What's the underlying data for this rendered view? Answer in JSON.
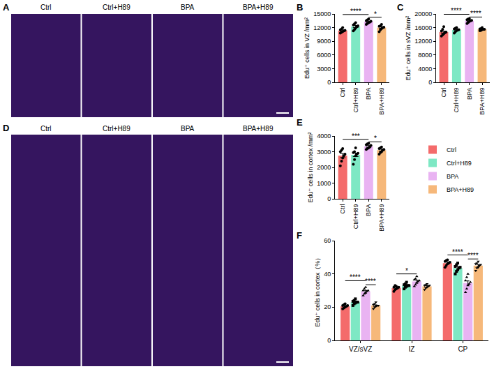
{
  "image_panels": [
    {
      "letter": "A",
      "columns": [
        "Ctrl",
        "Ctrl+H89",
        "BPA",
        "BPA+H89"
      ]
    },
    {
      "letter": "D",
      "columns": [
        "Ctrl",
        "Ctrl+H89",
        "BPA",
        "BPA+H89"
      ]
    }
  ],
  "chart_data": [
    {
      "letter": "B",
      "type": "bar",
      "y_label": "Edu⁺ cells in VZ /mm²",
      "categories": [
        "Ctrl",
        "Ctrl+H89",
        "BPA",
        "BPA+H89"
      ],
      "values": [
        11350,
        12250,
        13300,
        12000
      ],
      "errors": [
        150,
        220,
        140,
        180
      ],
      "points": [
        [
          10800,
          11000,
          11150,
          11300,
          11400,
          11500,
          11700,
          12000
        ],
        [
          11300,
          11600,
          11900,
          12200,
          12400,
          12600,
          12800,
          13100
        ],
        [
          12700,
          12900,
          13100,
          13200,
          13400,
          13500,
          13700,
          13900
        ],
        [
          11100,
          11500,
          11800,
          12000,
          12100,
          12300,
          12400,
          12700
        ]
      ],
      "colors": [
        "#f46b6b",
        "#7ee8c4",
        "#e9b3f2",
        "#f6b87a"
      ],
      "ylim": [
        0,
        15000
      ],
      "yticks": [
        0,
        3000,
        6000,
        9000,
        12000,
        15000
      ],
      "grid": false,
      "comparisons": [
        {
          "from": "Ctrl",
          "to": "BPA",
          "label": "****"
        },
        {
          "from": "BPA",
          "to": "BPA+H89",
          "label": "*"
        }
      ]
    },
    {
      "letter": "C",
      "type": "bar",
      "y_label": "Edu⁺ cells in sVZ /mm²",
      "categories": [
        "Ctrl",
        "Ctrl+H89",
        "BPA",
        "BPA+H89"
      ],
      "values": [
        14700,
        15300,
        18000,
        15500
      ],
      "errors": [
        300,
        200,
        180,
        110
      ],
      "points": [
        [
          13500,
          13900,
          14200,
          14500,
          14700,
          15000,
          15500,
          16300
        ],
        [
          14400,
          14800,
          15100,
          15300,
          15400,
          15600,
          15800,
          16000
        ],
        [
          17200,
          17500,
          17800,
          18000,
          18100,
          18300,
          18500,
          18600
        ],
        [
          15100,
          15200,
          15400,
          15500,
          15500,
          15600,
          15700,
          16000
        ]
      ],
      "colors": [
        "#f46b6b",
        "#7ee8c4",
        "#e9b3f2",
        "#f6b87a"
      ],
      "ylim": [
        0,
        20000
      ],
      "yticks": [
        0,
        4000,
        8000,
        12000,
        16000,
        20000
      ],
      "grid": false,
      "comparisons": [
        {
          "from": "Ctrl",
          "to": "BPA",
          "label": "****"
        },
        {
          "from": "BPA",
          "to": "BPA+H89",
          "label": "****"
        }
      ]
    },
    {
      "letter": "E",
      "type": "bar",
      "y_label": "Edu⁺ cells in cortex /mm²",
      "categories": [
        "Ctrl",
        "Ctrl+H89",
        "BPA",
        "BPA+H89"
      ],
      "values": [
        2750,
        2800,
        3350,
        3100
      ],
      "errors": [
        130,
        110,
        60,
        55
      ],
      "points": [
        [
          2100,
          2400,
          2600,
          2750,
          2850,
          3000,
          3100,
          3200
        ],
        [
          2200,
          2500,
          2750,
          2850,
          2900,
          2950,
          3000,
          3250
        ],
        [
          3150,
          3200,
          3250,
          3300,
          3400,
          3450,
          3500,
          3530
        ],
        [
          2850,
          2950,
          3000,
          3100,
          3150,
          3200,
          3250,
          3300
        ]
      ],
      "colors": [
        "#f46b6b",
        "#7ee8c4",
        "#e9b3f2",
        "#f6b87a"
      ],
      "ylim": [
        0,
        4000
      ],
      "yticks": [
        0,
        1000,
        2000,
        3000,
        4000
      ],
      "grid": false,
      "comparisons": [
        {
          "from": "Ctrl",
          "to": "BPA",
          "label": "***"
        },
        {
          "from": "BPA",
          "to": "BPA+H89",
          "label": "*"
        }
      ]
    },
    {
      "letter": "F",
      "type": "bar",
      "y_label": "Edu⁺ cells in cortex（%）",
      "categories": [
        "VZ/sVZ",
        "IZ",
        "CP"
      ],
      "series": [
        {
          "name": "Ctrl",
          "color": "#f46b6b",
          "marker": "circle",
          "values": [
            20.5,
            31.5,
            46.5
          ],
          "errors": [
            0.4,
            0.5,
            0.6
          ],
          "points": [
            [
              19,
              19.5,
              20,
              20.5,
              21,
              21,
              21.5,
              22
            ],
            [
              29.5,
              30.5,
              31,
              31.5,
              32,
              32,
              33,
              32.5
            ],
            [
              44,
              45,
              46,
              46.5,
              47,
              47.5,
              48,
              48.5
            ]
          ]
        },
        {
          "name": "Ctrl+H89",
          "color": "#7ee8c4",
          "marker": "square",
          "values": [
            23,
            33,
            43.5
          ],
          "errors": [
            0.5,
            0.5,
            0.8
          ],
          "points": [
            [
              21,
              22,
              22.5,
              23,
              23,
              23.5,
              24,
              25
            ],
            [
              31,
              32,
              32.5,
              33,
              33,
              33.5,
              34,
              35
            ],
            [
              40,
              41.5,
              42.5,
              43.5,
              44,
              44.5,
              45.5,
              46.5
            ]
          ]
        },
        {
          "name": "BPA",
          "color": "#e9b3f2",
          "marker": "triangle-up",
          "values": [
            29.5,
            35.5,
            34.5
          ],
          "errors": [
            0.6,
            0.7,
            1.3
          ],
          "points": [
            [
              27,
              28,
              28.5,
              29.5,
              30,
              30,
              31,
              32
            ],
            [
              32.5,
              33.5,
              34.5,
              35.5,
              36,
              36.5,
              37,
              38.5
            ],
            [
              29,
              31,
              33,
              34,
              35,
              36,
              38,
              40
            ]
          ]
        },
        {
          "name": "BPA+H89",
          "color": "#f6b87a",
          "marker": "triangle-down",
          "values": [
            21,
            32.5,
            45
          ],
          "errors": [
            0.4,
            0.4,
            0.6
          ],
          "points": [
            [
              19,
              20,
              20.5,
              21,
              21,
              21.5,
              22,
              23
            ],
            [
              30.5,
              31.5,
              32,
              32.5,
              33,
              33,
              33.5,
              34
            ],
            [
              42,
              43.5,
              44,
              45,
              45.5,
              46,
              46.5,
              47.5
            ]
          ]
        }
      ],
      "legend": "right",
      "ylim": [
        0,
        60
      ],
      "yticks": [
        0,
        20,
        40,
        60
      ],
      "grid": false,
      "comparisons": [
        {
          "category": "VZ/sVZ",
          "from": "Ctrl",
          "to": "BPA",
          "label": "****"
        },
        {
          "category": "VZ/sVZ",
          "from": "BPA",
          "to": "BPA+H89",
          "label": "****"
        },
        {
          "category": "IZ",
          "from": "Ctrl",
          "to": "BPA",
          "label": "*"
        },
        {
          "category": "CP",
          "from": "Ctrl",
          "to": "BPA",
          "label": "****"
        },
        {
          "category": "CP",
          "from": "BPA",
          "to": "BPA+H89",
          "label": "****"
        }
      ]
    }
  ]
}
